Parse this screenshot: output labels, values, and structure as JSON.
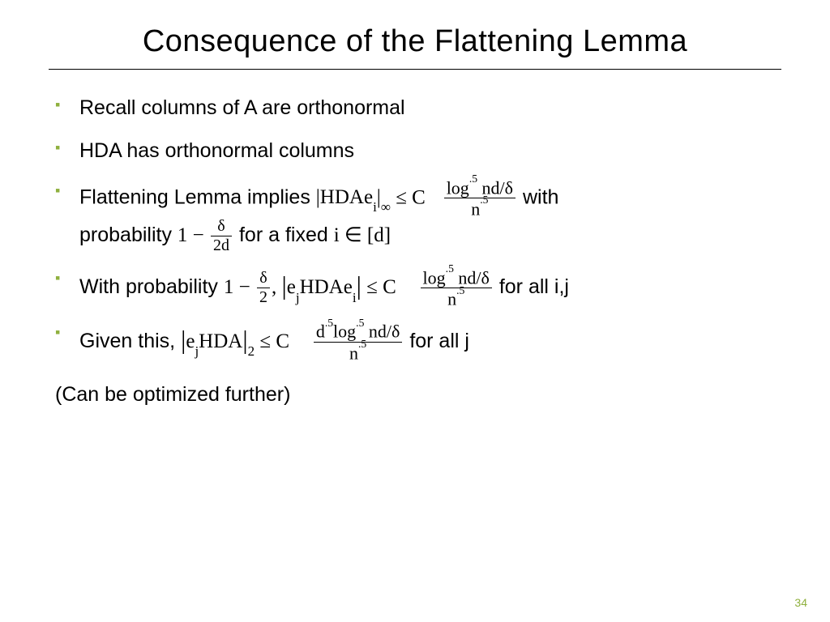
{
  "title": "Consequence of the Flattening Lemma",
  "bullets": {
    "b1": "Recall columns of A are orthonormal",
    "b2": "HDA has orthonormal columns",
    "b3_a": "Flattening Lemma implies ",
    "b3_lhs": "|HDAe",
    "b3_sub": "i",
    "b3_inf": "∞",
    "b3_leq": " ≤ C",
    "b3_frac_num": "log",
    "b3_frac_num2": " nd/δ",
    "b3_frac_den": "n",
    "b3_exp": ".5",
    "b3_with": " with",
    "b3_prob": "probability ",
    "b3_one": "1 − ",
    "b3_d": "δ",
    "b3_2d": "2d",
    "b3_for": " for a fixed ",
    "b3_i": "i ∈ [d]",
    "b4_a": "With probability ",
    "b4_one": "1 − ",
    "b4_d": "δ",
    "b4_2": "2",
    "b4_comma": ", ",
    "b4_ej": "e",
    "b4_j": "j",
    "b4_hda": "HDAe",
    "b4_i": "i",
    "b4_leq": "  ≤ C",
    "b4_num1": "log",
    "b4_num2": " nd/δ",
    "b4_den": "n",
    "b4_for": " for all i,j",
    "b5_a": "Given this, ",
    "b5_ej": "e",
    "b5_j": "j",
    "b5_hda": "HDA",
    "b5_two": "2",
    "b5_leq": " ≤ C",
    "b5_num1": "d",
    "b5_num2": "log",
    "b5_num3": " nd/δ",
    "b5_den": "n",
    "b5_for": " for all j"
  },
  "note": "(Can be optimized further)",
  "page": "34",
  "colors": {
    "accent": "#8fb03e"
  }
}
